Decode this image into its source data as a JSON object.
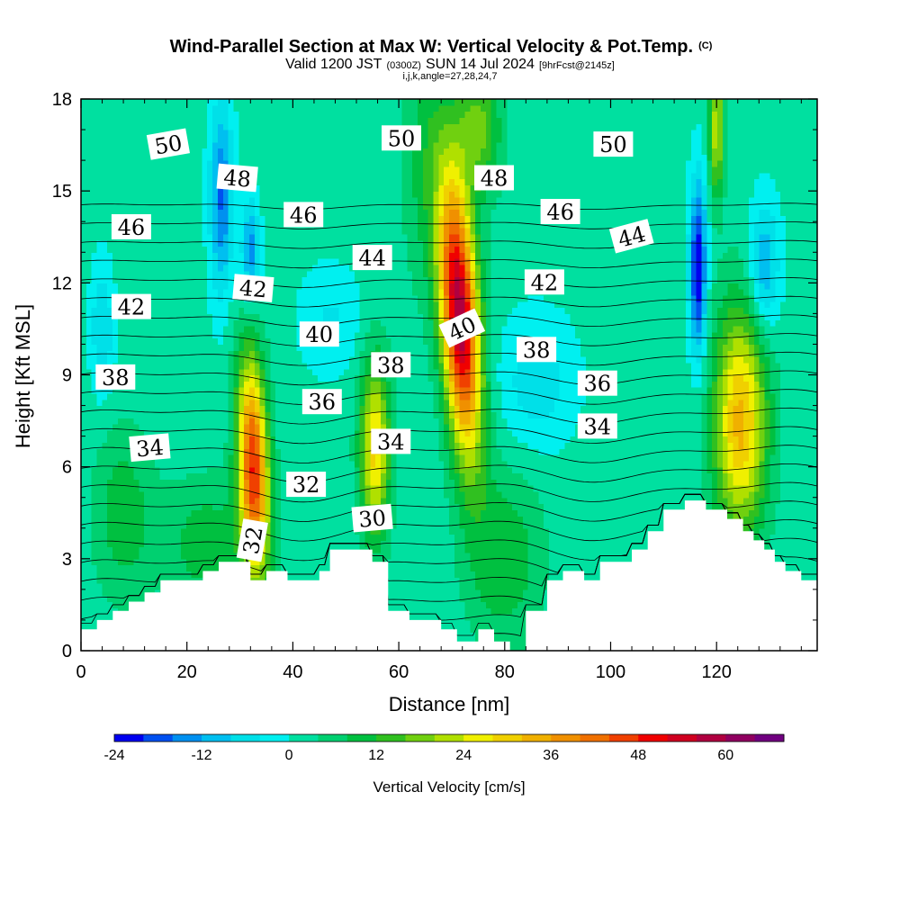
{
  "chart_data": {
    "type": "heatmap",
    "title": {
      "main": "Wind-Parallel Section at Max W: Vertical Velocity & Pot.Temp.",
      "main_suffix": "(C)",
      "line2_a": "Valid 1200 JST",
      "line2_b": "(0300Z)",
      "line2_c": "SUN 14 Jul 2024",
      "line2_d": "[9hrFcst@2145z]",
      "line3": "i,j,k,angle=27,28,24,7"
    },
    "xlabel": "Distance [nm]",
    "ylabel": "Height [Kft MSL]",
    "xlim": [
      0,
      139
    ],
    "ylim": [
      0,
      18
    ],
    "x_ticks": [
      0,
      20,
      40,
      60,
      80,
      100,
      120
    ],
    "y_ticks": [
      0,
      3,
      6,
      9,
      12,
      15,
      18
    ],
    "colorbar": {
      "title": "Vertical Velocity [cm/s]",
      "levels": [
        -24,
        -20,
        -16,
        -12,
        -8,
        -4,
        0,
        4,
        8,
        12,
        16,
        20,
        24,
        28,
        32,
        36,
        40,
        44,
        48,
        52,
        56,
        60,
        64,
        68
      ],
      "tick_labels": [
        "-24",
        "-12",
        "0",
        "12",
        "24",
        "36",
        "48",
        "60"
      ],
      "tick_values": [
        -24,
        -12,
        0,
        12,
        24,
        36,
        48,
        60
      ],
      "colors": [
        "#0000f0",
        "#0050f0",
        "#0090f0",
        "#00bff0",
        "#00e0e8",
        "#00f0f0",
        "#00e0a0",
        "#00d070",
        "#00c040",
        "#30c020",
        "#70d010",
        "#b0e000",
        "#f0f000",
        "#f0d000",
        "#f0b000",
        "#f09000",
        "#f07000",
        "#f04000",
        "#f00000",
        "#d00020",
        "#b00040",
        "#900060",
        "#700080"
      ]
    },
    "terrain_kft": [
      [
        0,
        0.7
      ],
      [
        3,
        0.7
      ],
      [
        3,
        1.0
      ],
      [
        6,
        1.0
      ],
      [
        6,
        1.3
      ],
      [
        9,
        1.3
      ],
      [
        9,
        1.6
      ],
      [
        12,
        1.6
      ],
      [
        12,
        1.9
      ],
      [
        15,
        1.9
      ],
      [
        15,
        2.3
      ],
      [
        23,
        2.3
      ],
      [
        23,
        2.6
      ],
      [
        26,
        2.6
      ],
      [
        26,
        2.9
      ],
      [
        32,
        2.9
      ],
      [
        32,
        2.3
      ],
      [
        35,
        2.3
      ],
      [
        35,
        2.6
      ],
      [
        39,
        2.6
      ],
      [
        39,
        2.3
      ],
      [
        45,
        2.3
      ],
      [
        45,
        2.6
      ],
      [
        47,
        2.6
      ],
      [
        47,
        3.3
      ],
      [
        55,
        3.3
      ],
      [
        55,
        2.9
      ],
      [
        58,
        2.9
      ],
      [
        58,
        1.3
      ],
      [
        62,
        1.3
      ],
      [
        62,
        1.0
      ],
      [
        68,
        1.0
      ],
      [
        68,
        0.7
      ],
      [
        71,
        0.7
      ],
      [
        71,
        0.3
      ],
      [
        75,
        0.3
      ],
      [
        75,
        0.7
      ],
      [
        78,
        0.7
      ],
      [
        78,
        0.3
      ],
      [
        81,
        0.3
      ],
      [
        81,
        0.0
      ],
      [
        84,
        0.0
      ],
      [
        84,
        1.3
      ],
      [
        88,
        1.3
      ],
      [
        88,
        2.3
      ],
      [
        91,
        2.3
      ],
      [
        91,
        2.6
      ],
      [
        95,
        2.6
      ],
      [
        95,
        2.3
      ],
      [
        98,
        2.3
      ],
      [
        98,
        2.9
      ],
      [
        104,
        2.9
      ],
      [
        104,
        3.3
      ],
      [
        107,
        3.3
      ],
      [
        107,
        3.9
      ],
      [
        110,
        3.9
      ],
      [
        110,
        4.6
      ],
      [
        114,
        4.6
      ],
      [
        114,
        4.9
      ],
      [
        118,
        4.9
      ],
      [
        118,
        4.6
      ],
      [
        122,
        4.6
      ],
      [
        122,
        4.3
      ],
      [
        125,
        4.3
      ],
      [
        125,
        3.9
      ],
      [
        127,
        3.9
      ],
      [
        127,
        3.6
      ],
      [
        129,
        3.6
      ],
      [
        129,
        3.3
      ],
      [
        131,
        3.3
      ],
      [
        131,
        2.9
      ],
      [
        133,
        2.9
      ],
      [
        133,
        2.6
      ],
      [
        136,
        2.6
      ],
      [
        136,
        2.3
      ],
      [
        139,
        2.3
      ]
    ],
    "vertical_velocity_features": [
      {
        "x": 32.5,
        "y": 6.0,
        "sx": 2.0,
        "sy": 2.5,
        "w": 46,
        "tilt": -0.18
      },
      {
        "x": 55.5,
        "y": 6.6,
        "sx": 2.0,
        "sy": 2.0,
        "w": 28,
        "tilt": 0
      },
      {
        "x": 71.5,
        "y": 11.0,
        "sx": 2.5,
        "sy": 3.2,
        "w": 58,
        "tilt": -0.35
      },
      {
        "x": 75.0,
        "y": 17.0,
        "sx": 3.0,
        "sy": 1.5,
        "w": 16,
        "tilt": 0
      },
      {
        "x": 80.0,
        "y": 3.0,
        "sx": 5.0,
        "sy": 2.0,
        "w": 10,
        "tilt": 0
      },
      {
        "x": 124.5,
        "y": 7.5,
        "sx": 3.5,
        "sy": 2.6,
        "w": 32,
        "tilt": 0
      },
      {
        "x": 120.0,
        "y": 17.0,
        "sx": 1.0,
        "sy": 1.5,
        "w": 22,
        "tilt": 0
      },
      {
        "x": 8.0,
        "y": 4.5,
        "sx": 4.0,
        "sy": 2.0,
        "w": 9,
        "tilt": 0
      },
      {
        "x": 24.0,
        "y": 3.5,
        "sx": 6.0,
        "sy": 1.5,
        "w": 9,
        "tilt": 0
      },
      {
        "x": 65.0,
        "y": 16.0,
        "sx": 3.0,
        "sy": 3.0,
        "w": 8,
        "tilt": 0
      },
      {
        "x": 26.5,
        "y": 14.8,
        "sx": 1.5,
        "sy": 2.2,
        "w": -18,
        "tilt": 0
      },
      {
        "x": 32.0,
        "y": 13.0,
        "sx": 1.2,
        "sy": 1.2,
        "w": -16,
        "tilt": 0
      },
      {
        "x": 116.5,
        "y": 12.5,
        "sx": 1.1,
        "sy": 2.0,
        "w": -26,
        "tilt": 0
      },
      {
        "x": 129.0,
        "y": 12.5,
        "sx": 2.0,
        "sy": 1.5,
        "w": -14,
        "tilt": 0
      },
      {
        "x": 4.0,
        "y": 10.5,
        "sx": 1.5,
        "sy": 1.5,
        "w": -10,
        "tilt": 0
      },
      {
        "x": 86.0,
        "y": 8.8,
        "sx": 5.0,
        "sy": 1.5,
        "w": -8,
        "tilt": 0
      },
      {
        "x": 47.0,
        "y": 10.8,
        "sx": 4.0,
        "sy": 1.2,
        "w": -6,
        "tilt": 0
      }
    ],
    "theta_contour_labels": [
      {
        "text": "50",
        "x": 16.5,
        "y": 16.5,
        "rotate": -10
      },
      {
        "text": "50",
        "x": 60.5,
        "y": 16.7,
        "rotate": 0
      },
      {
        "text": "50",
        "x": 100.5,
        "y": 16.5,
        "rotate": 0
      },
      {
        "text": "48",
        "x": 29.5,
        "y": 15.4,
        "rotate": 5
      },
      {
        "text": "48",
        "x": 78.0,
        "y": 15.4,
        "rotate": 0
      },
      {
        "text": "46",
        "x": 9.5,
        "y": 13.8,
        "rotate": 0
      },
      {
        "text": "46",
        "x": 42.0,
        "y": 14.2,
        "rotate": 0
      },
      {
        "text": "46",
        "x": 90.5,
        "y": 14.3,
        "rotate": 0
      },
      {
        "text": "44",
        "x": 55.0,
        "y": 12.8,
        "rotate": 0
      },
      {
        "text": "44",
        "x": 104.0,
        "y": 13.5,
        "rotate": -15
      },
      {
        "text": "42",
        "x": 9.5,
        "y": 11.2,
        "rotate": 0
      },
      {
        "text": "42",
        "x": 32.5,
        "y": 11.8,
        "rotate": 5
      },
      {
        "text": "42",
        "x": 87.5,
        "y": 12.0,
        "rotate": 0
      },
      {
        "text": "40",
        "x": 45.0,
        "y": 10.3,
        "rotate": 0
      },
      {
        "text": "40",
        "x": 72.0,
        "y": 10.5,
        "rotate": -25
      },
      {
        "text": "38",
        "x": 6.5,
        "y": 8.9,
        "rotate": 0
      },
      {
        "text": "38",
        "x": 58.5,
        "y": 9.3,
        "rotate": 0
      },
      {
        "text": "38",
        "x": 86.0,
        "y": 9.8,
        "rotate": 0
      },
      {
        "text": "36",
        "x": 45.5,
        "y": 8.1,
        "rotate": 0
      },
      {
        "text": "36",
        "x": 97.5,
        "y": 8.7,
        "rotate": 0
      },
      {
        "text": "34",
        "x": 13.0,
        "y": 6.6,
        "rotate": -5
      },
      {
        "text": "34",
        "x": 58.5,
        "y": 6.8,
        "rotate": 0
      },
      {
        "text": "34",
        "x": 97.5,
        "y": 7.3,
        "rotate": 0
      },
      {
        "text": "32",
        "x": 42.5,
        "y": 5.4,
        "rotate": 0
      },
      {
        "text": "32",
        "x": 32.5,
        "y": 3.6,
        "rotate": -80
      },
      {
        "text": "30",
        "x": 55.0,
        "y": 4.3,
        "rotate": -5
      }
    ],
    "theta_contour_levels_k": [
      28,
      29,
      30,
      31,
      32,
      33,
      34,
      35,
      36,
      37,
      38,
      39,
      40,
      41,
      42,
      43,
      44,
      45,
      46,
      47,
      48,
      49,
      50,
      51
    ]
  }
}
